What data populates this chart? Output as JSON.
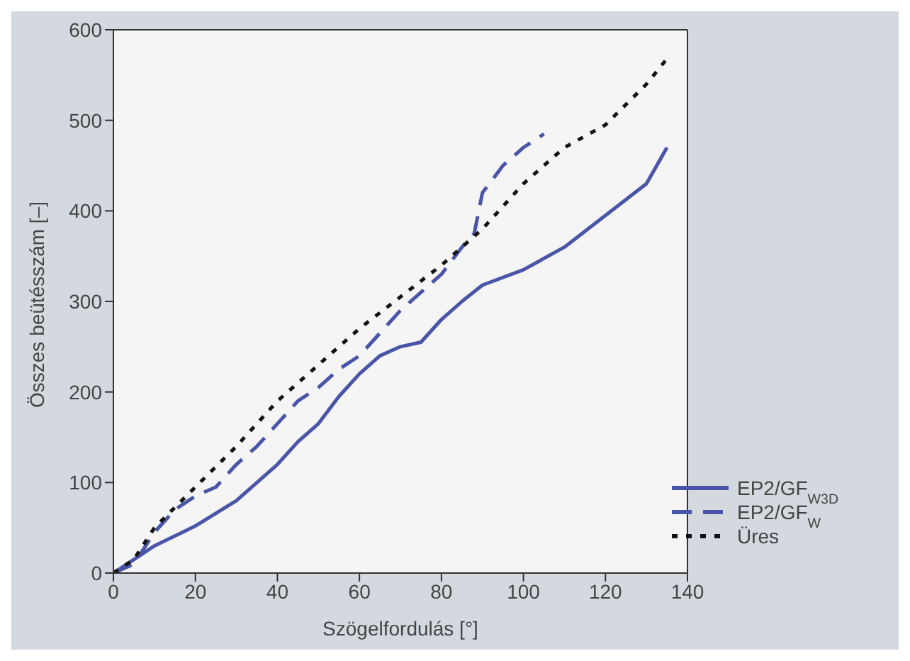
{
  "chart_data": {
    "type": "line",
    "xlabel": "Szögelfordulás [°]",
    "ylabel": "Összes beütésszám [–]",
    "xlim": [
      0,
      140
    ],
    "xticks": [
      0,
      20,
      40,
      60,
      80,
      100,
      120,
      140
    ],
    "ylim": [
      0,
      600
    ],
    "yticks": [
      0,
      100,
      200,
      300,
      400,
      500,
      600
    ],
    "grid": false,
    "legend": "bottom right",
    "marker": "none",
    "series": [
      {
        "name": "EP2/GF$_{W3D}$",
        "color": "#4a55a8",
        "line_style": "solid",
        "x": [
          0,
          5,
          10,
          20,
          30,
          40,
          45,
          50,
          55,
          60,
          65,
          70,
          75,
          80,
          85,
          90,
          100,
          110,
          120,
          130,
          135
        ],
        "values": [
          0,
          15,
          30,
          52,
          80,
          120,
          145,
          165,
          195,
          220,
          240,
          250,
          255,
          280,
          300,
          318,
          335,
          360,
          395,
          430,
          470
        ]
      },
      {
        "name": "EP2/GF$_{W}$",
        "color": "#4a55a8",
        "line_style": "dashed",
        "x": [
          0,
          5,
          10,
          15,
          20,
          25,
          30,
          35,
          40,
          45,
          50,
          55,
          60,
          65,
          70,
          75,
          80,
          85,
          88,
          90,
          95,
          100,
          105
        ],
        "values": [
          0,
          10,
          45,
          70,
          85,
          95,
          120,
          140,
          165,
          190,
          205,
          225,
          240,
          265,
          290,
          310,
          330,
          360,
          375,
          420,
          450,
          470,
          485
        ]
      },
      {
        "name": "Üres",
        "color": "#111111",
        "line_style": "dotted",
        "x": [
          0,
          5,
          10,
          20,
          30,
          40,
          50,
          60,
          70,
          80,
          90,
          100,
          110,
          120,
          130,
          135
        ],
        "values": [
          0,
          15,
          50,
          95,
          140,
          190,
          230,
          270,
          305,
          340,
          380,
          430,
          470,
          495,
          540,
          568
        ]
      }
    ]
  }
}
